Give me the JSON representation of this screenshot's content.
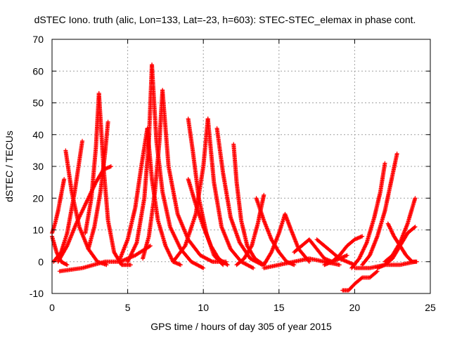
{
  "chart_data": {
    "type": "scatter",
    "title": "dSTEC Iono. truth (alic, Lon=133, Lat=-23, h=603): STEC-STEC_elemax in phase cont.",
    "xlabel": "GPS time / hours of day 305 of year 2015",
    "ylabel": "dSTEC  / TECUs",
    "xlim": [
      0,
      25
    ],
    "ylim": [
      -10,
      70
    ],
    "xticks": [
      0,
      5,
      10,
      15,
      20,
      25
    ],
    "yticks": [
      -10,
      0,
      10,
      20,
      30,
      40,
      50,
      60,
      70
    ],
    "grid": true,
    "marker": "+",
    "color": "#ff0000",
    "arcs": [
      {
        "x": [
          0.0,
          0.3,
          0.6,
          1.0
        ],
        "y": [
          8,
          3,
          0,
          -1
        ]
      },
      {
        "x": [
          0.0,
          0.2,
          0.4,
          0.6,
          0.8
        ],
        "y": [
          9,
          12,
          16,
          21,
          26
        ]
      },
      {
        "x": [
          0.1,
          0.6,
          1.0,
          1.5,
          2.0
        ],
        "y": [
          0,
          3,
          9,
          22,
          38
        ]
      },
      {
        "x": [
          0.9,
          1.3,
          1.8,
          2.4,
          3.0,
          3.6
        ],
        "y": [
          35,
          22,
          11,
          4,
          0,
          -1
        ]
      },
      {
        "x": [
          0.4,
          1.0,
          1.6,
          2.3,
          2.9,
          3.4,
          3.9
        ],
        "y": [
          0,
          5,
          12,
          19,
          25,
          29,
          30
        ]
      },
      {
        "x": [
          2.2,
          2.6,
          2.9,
          3.1
        ],
        "y": [
          9,
          20,
          36,
          53
        ]
      },
      {
        "x": [
          3.1,
          3.4,
          3.7,
          4.1,
          4.6,
          5.2
        ],
        "y": [
          53,
          30,
          13,
          3,
          -1,
          -1
        ]
      },
      {
        "x": [
          2.4,
          2.8,
          3.2,
          3.5,
          3.7
        ],
        "y": [
          4,
          11,
          22,
          34,
          44
        ]
      },
      {
        "x": [
          4.5,
          5.0,
          5.5,
          5.9,
          6.3
        ],
        "y": [
          1,
          7,
          17,
          30,
          42
        ]
      },
      {
        "x": [
          6.3,
          6.6,
          7.0,
          7.5,
          8.0,
          8.5
        ],
        "y": [
          42,
          26,
          13,
          5,
          0,
          -1
        ]
      },
      {
        "x": [
          5.0,
          5.6,
          6.1,
          6.4,
          6.6
        ],
        "y": [
          0,
          6,
          20,
          38,
          62
        ]
      },
      {
        "x": [
          6.6,
          6.9,
          7.3,
          7.8,
          8.5,
          9.2,
          10.0
        ],
        "y": [
          62,
          38,
          22,
          11,
          4,
          0,
          -2
        ]
      },
      {
        "x": [
          6.0,
          6.4,
          6.8,
          7.1,
          7.3
        ],
        "y": [
          1,
          8,
          22,
          38,
          54
        ]
      },
      {
        "x": [
          7.3,
          7.7,
          8.3,
          9.0,
          9.8,
          10.6,
          11.5
        ],
        "y": [
          54,
          30,
          15,
          7,
          2,
          0,
          0
        ]
      },
      {
        "x": [
          0.5,
          2.0,
          3.5,
          4.5,
          5.5,
          6.5
        ],
        "y": [
          -3,
          -2,
          0,
          0,
          2,
          5
        ]
      },
      {
        "x": [
          9.0,
          9.3,
          9.7,
          10.2,
          10.7,
          11.3
        ],
        "y": [
          45,
          35,
          20,
          9,
          2,
          -1
        ]
      },
      {
        "x": [
          9.0,
          9.5,
          10.0,
          10.5,
          11.0,
          11.6
        ],
        "y": [
          26,
          18,
          11,
          5,
          1,
          -1
        ]
      },
      {
        "x": [
          8.0,
          8.8,
          9.5,
          10.0,
          10.3
        ],
        "y": [
          0,
          5,
          15,
          30,
          45
        ]
      },
      {
        "x": [
          10.3,
          10.7,
          11.2,
          11.8,
          12.5,
          13.3
        ],
        "y": [
          45,
          25,
          11,
          4,
          0,
          -2
        ]
      },
      {
        "x": [
          10.9,
          11.3,
          11.8,
          12.4,
          13.1,
          13.9
        ],
        "y": [
          42,
          28,
          14,
          6,
          1,
          -1
        ]
      },
      {
        "x": [
          12.0,
          12.2,
          12.5,
          12.9,
          13.4,
          14.0
        ],
        "y": [
          37,
          25,
          13,
          5,
          1,
          -1
        ]
      },
      {
        "x": [
          12.2,
          12.7,
          13.2,
          13.6,
          14.0
        ],
        "y": [
          -1,
          1,
          5,
          12,
          21
        ]
      },
      {
        "x": [
          13.5,
          14.0,
          14.5,
          15.0,
          15.5,
          16.0
        ],
        "y": [
          20,
          13,
          7,
          3,
          0,
          -1
        ]
      },
      {
        "x": [
          14.0,
          14.5,
          15.0,
          15.4,
          15.8,
          16.3,
          17.0
        ],
        "y": [
          -1,
          3,
          9,
          15,
          10,
          4,
          0
        ]
      },
      {
        "x": [
          14.0,
          15.0,
          16.0,
          17.0,
          18.0,
          19.0
        ],
        "y": [
          -2,
          -1,
          0,
          1,
          0,
          -1
        ]
      },
      {
        "x": [
          16.0,
          16.5,
          17.0,
          17.5,
          18.0,
          18.5,
          19.0,
          19.5
        ],
        "y": [
          3,
          5,
          7,
          4,
          1,
          0,
          1,
          2
        ]
      },
      {
        "x": [
          17.5,
          18.0,
          18.5,
          19.0,
          19.5,
          20.0
        ],
        "y": [
          7,
          5,
          3,
          1,
          0,
          -1
        ]
      },
      {
        "x": [
          18.0,
          18.5,
          19.0,
          19.5,
          20.0,
          20.5
        ],
        "y": [
          -1,
          0,
          2,
          5,
          7,
          8
        ]
      },
      {
        "x": [
          19.2,
          19.6,
          20.0,
          20.5,
          21.0,
          21.5
        ],
        "y": [
          -9,
          -9,
          -7,
          -5,
          -5,
          -3
        ]
      },
      {
        "x": [
          19.8,
          20.3,
          20.8,
          21.3,
          21.7,
          22.0
        ],
        "y": [
          -2,
          1,
          6,
          14,
          22,
          31
        ]
      },
      {
        "x": [
          20.5,
          21.0,
          21.5,
          22.0,
          22.4,
          22.8
        ],
        "y": [
          -1,
          2,
          8,
          16,
          25,
          34
        ]
      },
      {
        "x": [
          20.0,
          21.0,
          22.0,
          23.0,
          24.0
        ],
        "y": [
          -2,
          -2,
          -1,
          -1,
          0
        ]
      },
      {
        "x": [
          22.2,
          22.6,
          23.0,
          23.4,
          23.8,
          24.1
        ],
        "y": [
          12,
          8,
          5,
          2,
          0,
          0
        ]
      },
      {
        "x": [
          21.5,
          22.0,
          22.5,
          23.0,
          23.5,
          24.0
        ],
        "y": [
          -2,
          -1,
          1,
          5,
          9,
          11
        ]
      },
      {
        "x": [
          22.0,
          22.5,
          23.0,
          23.5,
          24.0
        ],
        "y": [
          0,
          2,
          6,
          12,
          20
        ]
      }
    ]
  }
}
